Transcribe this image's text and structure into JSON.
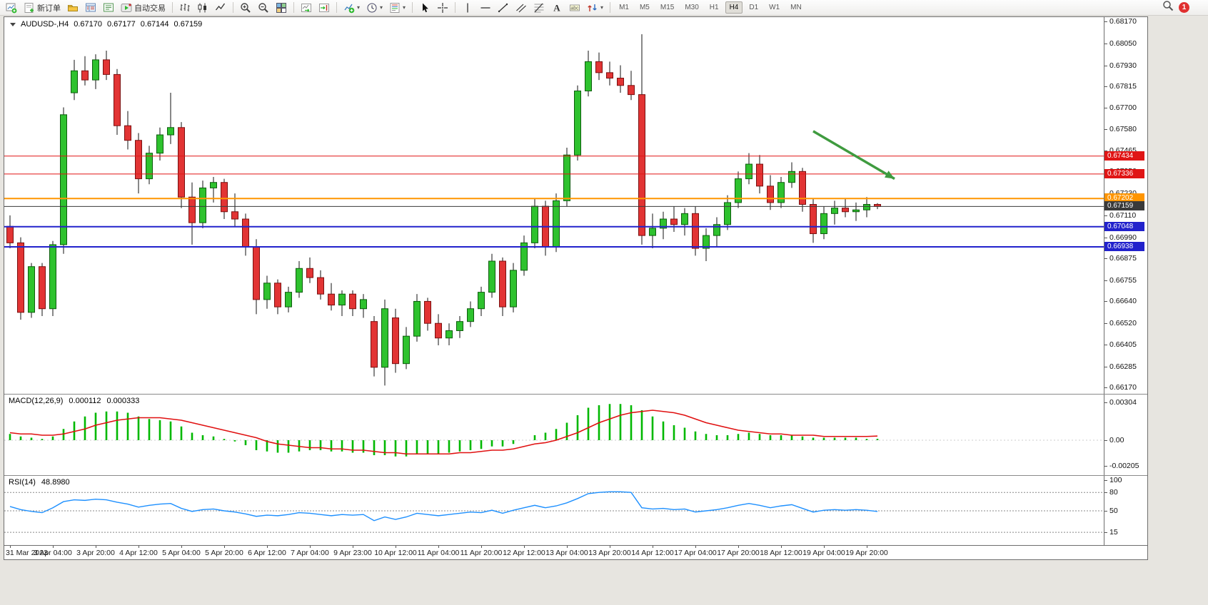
{
  "toolbar": {
    "items": [
      {
        "name": "new-chart",
        "icon": "new-chart"
      },
      {
        "name": "new-order",
        "icon": "new-order",
        "label": "新订单"
      },
      {
        "name": "profiles",
        "icon": "profiles"
      },
      {
        "name": "market-watch",
        "icon": "market-watch"
      },
      {
        "name": "navigator",
        "icon": "navigator"
      },
      {
        "name": "autotrading",
        "icon": "autotrading",
        "label": "自动交易"
      },
      {
        "type": "sep"
      },
      {
        "name": "bar-chart",
        "icon": "bars"
      },
      {
        "name": "candlestick-chart",
        "icon": "candles"
      },
      {
        "name": "line-chart",
        "icon": "line"
      },
      {
        "type": "sep"
      },
      {
        "name": "zoom-in",
        "icon": "zoom-in"
      },
      {
        "name": "zoom-out",
        "icon": "zoom-out"
      },
      {
        "name": "tile-windows",
        "icon": "tile"
      },
      {
        "type": "sep"
      },
      {
        "name": "auto-scroll",
        "icon": "autoscroll"
      },
      {
        "name": "chart-shift",
        "icon": "shift"
      },
      {
        "type": "sep"
      },
      {
        "name": "indicators",
        "icon": "indicators",
        "dropdown": true
      },
      {
        "name": "periods",
        "icon": "clock",
        "dropdown": true
      },
      {
        "name": "templates",
        "icon": "template",
        "dropdown": true
      },
      {
        "type": "sep"
      },
      {
        "name": "cursor",
        "icon": "cursor"
      },
      {
        "name": "crosshair",
        "icon": "crosshair"
      },
      {
        "type": "sep"
      },
      {
        "name": "vertical-line",
        "icon": "vline"
      },
      {
        "name": "horizontal-line",
        "icon": "hline"
      },
      {
        "name": "trendline",
        "icon": "trend"
      },
      {
        "name": "equidistant-channel",
        "icon": "channel"
      },
      {
        "name": "fibonacci",
        "icon": "fibo"
      },
      {
        "name": "text",
        "icon": "text"
      },
      {
        "name": "text-label",
        "icon": "label"
      },
      {
        "name": "arrows",
        "icon": "arrows",
        "dropdown": true
      },
      {
        "type": "sep"
      }
    ],
    "timeframes": {
      "options": [
        "M1",
        "M5",
        "M15",
        "M30",
        "H1",
        "H4",
        "D1",
        "W1",
        "MN"
      ],
      "active": "H4"
    },
    "notification_count": "1"
  },
  "chart": {
    "symbol_label": "AUDUSD-,H4",
    "ohlc": {
      "open": "0.67170",
      "high": "0.67177",
      "low": "0.67144",
      "close": "0.67159"
    }
  },
  "chart_data": {
    "type": "candlestick",
    "symbol": "AUDUSD-",
    "timeframe": "H4",
    "price_range": [
      0.6617,
      0.6817
    ],
    "y_axis_ticks": [
      "0.68170",
      "0.68050",
      "0.67930",
      "0.67815",
      "0.67700",
      "0.67580",
      "0.67465",
      "0.67350",
      "0.67230",
      "0.67110",
      "0.66990",
      "0.66875",
      "0.66755",
      "0.66640",
      "0.66520",
      "0.66405",
      "0.66285",
      "0.66170"
    ],
    "time_labels": [
      "31 Mar 2023",
      "3 Apr 04:00",
      "3 Apr 20:00",
      "4 Apr 12:00",
      "5 Apr 04:00",
      "5 Apr 20:00",
      "6 Apr 12:00",
      "7 Apr 04:00",
      "9 Apr 23:00",
      "10 Apr 12:00",
      "11 Apr 04:00",
      "11 Apr 20:00",
      "12 Apr 12:00",
      "13 Apr 04:00",
      "13 Apr 20:00",
      "14 Apr 12:00",
      "17 Apr 04:00",
      "17 Apr 20:00",
      "18 Apr 12:00",
      "19 Apr 04:00",
      "19 Apr 20:00"
    ],
    "candles": [
      [
        0.6705,
        0.6711,
        0.6693,
        0.6696
      ],
      [
        0.6696,
        0.6699,
        0.6654,
        0.6658
      ],
      [
        0.6658,
        0.6685,
        0.6655,
        0.6683
      ],
      [
        0.6683,
        0.6685,
        0.6656,
        0.666
      ],
      [
        0.666,
        0.6697,
        0.6656,
        0.6695
      ],
      [
        0.6695,
        0.677,
        0.669,
        0.6766
      ],
      [
        0.6778,
        0.6796,
        0.6774,
        0.679
      ],
      [
        0.679,
        0.6798,
        0.6782,
        0.6785
      ],
      [
        0.6785,
        0.6799,
        0.678,
        0.6796
      ],
      [
        0.6796,
        0.6801,
        0.6785,
        0.6788
      ],
      [
        0.6788,
        0.6791,
        0.6755,
        0.676
      ],
      [
        0.676,
        0.6768,
        0.6747,
        0.6752
      ],
      [
        0.6752,
        0.6756,
        0.6723,
        0.6731
      ],
      [
        0.6731,
        0.6749,
        0.6728,
        0.6745
      ],
      [
        0.6745,
        0.6759,
        0.6741,
        0.6755
      ],
      [
        0.6755,
        0.6778,
        0.675,
        0.6759
      ],
      [
        0.6759,
        0.6762,
        0.6715,
        0.6721
      ],
      [
        0.6721,
        0.6729,
        0.6695,
        0.6707
      ],
      [
        0.6707,
        0.673,
        0.6704,
        0.6726
      ],
      [
        0.6726,
        0.6732,
        0.6718,
        0.6729
      ],
      [
        0.6729,
        0.6731,
        0.6709,
        0.6713
      ],
      [
        0.6713,
        0.6723,
        0.6705,
        0.6709
      ],
      [
        0.6709,
        0.6712,
        0.6689,
        0.6694
      ],
      [
        0.6694,
        0.6698,
        0.6657,
        0.6665
      ],
      [
        0.6665,
        0.6678,
        0.666,
        0.6674
      ],
      [
        0.6674,
        0.6676,
        0.6657,
        0.6661
      ],
      [
        0.6661,
        0.6672,
        0.6658,
        0.6669
      ],
      [
        0.6669,
        0.6686,
        0.6666,
        0.6682
      ],
      [
        0.6682,
        0.6688,
        0.6674,
        0.6677
      ],
      [
        0.6677,
        0.6681,
        0.6665,
        0.6668
      ],
      [
        0.6668,
        0.6674,
        0.6659,
        0.6662
      ],
      [
        0.6662,
        0.667,
        0.6656,
        0.6668
      ],
      [
        0.6668,
        0.667,
        0.6656,
        0.666
      ],
      [
        0.666,
        0.6668,
        0.6655,
        0.6665
      ],
      [
        0.6653,
        0.6656,
        0.6623,
        0.6628
      ],
      [
        0.6628,
        0.6665,
        0.6618,
        0.666
      ],
      [
        0.6655,
        0.666,
        0.6625,
        0.663
      ],
      [
        0.663,
        0.665,
        0.6627,
        0.6645
      ],
      [
        0.6645,
        0.6668,
        0.6642,
        0.6664
      ],
      [
        0.6664,
        0.6666,
        0.6648,
        0.6652
      ],
      [
        0.6652,
        0.6657,
        0.664,
        0.6644
      ],
      [
        0.6644,
        0.6652,
        0.664,
        0.6648
      ],
      [
        0.6648,
        0.6656,
        0.6644,
        0.6653
      ],
      [
        0.6653,
        0.6664,
        0.665,
        0.666
      ],
      [
        0.666,
        0.6672,
        0.6656,
        0.6669
      ],
      [
        0.6669,
        0.669,
        0.6666,
        0.6686
      ],
      [
        0.6686,
        0.6688,
        0.6656,
        0.6661
      ],
      [
        0.6661,
        0.6685,
        0.6658,
        0.6681
      ],
      [
        0.6681,
        0.67,
        0.6678,
        0.6696
      ],
      [
        0.6696,
        0.672,
        0.6693,
        0.6716
      ],
      [
        0.6716,
        0.6719,
        0.6689,
        0.6694
      ],
      [
        0.6694,
        0.6723,
        0.6691,
        0.6719
      ],
      [
        0.6719,
        0.6748,
        0.6716,
        0.6744
      ],
      [
        0.6744,
        0.6782,
        0.6741,
        0.6779
      ],
      [
        0.6779,
        0.6801,
        0.6776,
        0.6795
      ],
      [
        0.6795,
        0.68,
        0.6785,
        0.6789
      ],
      [
        0.6789,
        0.6795,
        0.6782,
        0.6786
      ],
      [
        0.6786,
        0.6793,
        0.6778,
        0.6782
      ],
      [
        0.6782,
        0.679,
        0.6774,
        0.6777
      ],
      [
        0.6777,
        0.681,
        0.6695,
        0.67
      ],
      [
        0.67,
        0.6712,
        0.6693,
        0.6704
      ],
      [
        0.6704,
        0.6713,
        0.6698,
        0.6709
      ],
      [
        0.6709,
        0.6716,
        0.6702,
        0.6706
      ],
      [
        0.6706,
        0.6715,
        0.67,
        0.6712
      ],
      [
        0.6712,
        0.6716,
        0.6689,
        0.6693
      ],
      [
        0.6693,
        0.6704,
        0.6686,
        0.67
      ],
      [
        0.67,
        0.671,
        0.6694,
        0.6706
      ],
      [
        0.6706,
        0.6722,
        0.6703,
        0.6718
      ],
      [
        0.6718,
        0.6735,
        0.6715,
        0.6731
      ],
      [
        0.6731,
        0.6745,
        0.6728,
        0.6739
      ],
      [
        0.6739,
        0.6744,
        0.6723,
        0.6727
      ],
      [
        0.6727,
        0.6733,
        0.6714,
        0.6718
      ],
      [
        0.6718,
        0.6732,
        0.6715,
        0.6729
      ],
      [
        0.6729,
        0.674,
        0.6726,
        0.6735
      ],
      [
        0.6735,
        0.6737,
        0.6713,
        0.6717
      ],
      [
        0.6717,
        0.672,
        0.6696,
        0.6701
      ],
      [
        0.6701,
        0.6716,
        0.6698,
        0.6712
      ],
      [
        0.6712,
        0.6719,
        0.6706,
        0.6715
      ],
      [
        0.6715,
        0.672,
        0.671,
        0.6713
      ],
      [
        0.6713,
        0.6718,
        0.6708,
        0.6714
      ],
      [
        0.6714,
        0.6721,
        0.671,
        0.6717
      ],
      [
        0.6717,
        0.67177,
        0.67144,
        0.67159
      ]
    ],
    "hlines": [
      {
        "price": 0.67434,
        "color": "#e01515",
        "width": 1,
        "label": "0.67434"
      },
      {
        "price": 0.67336,
        "color": "#e01515",
        "width": 1,
        "label": "0.67336"
      },
      {
        "price": 0.67202,
        "color": "#ff9500",
        "width": 2,
        "label": "0.67202"
      },
      {
        "price": 0.67159,
        "color": "#3a3a3a",
        "width": 1,
        "label": "0.67159"
      },
      {
        "price": 0.67048,
        "color": "#2222cc",
        "width": 2,
        "label": "0.67048"
      },
      {
        "price": 0.66938,
        "color": "#2222cc",
        "width": 2,
        "label": "0.66938"
      }
    ],
    "arrow": {
      "bar1": 75,
      "price1": 0.6757,
      "bar2": 82.6,
      "price2": 0.6731,
      "color": "#3f9b3f",
      "width": 3.5
    },
    "macd": {
      "label": "MACD(12,26,9)",
      "value_text": "0.000112",
      "signal_text": "0.000333",
      "axis": [
        "0.00304",
        "0.00",
        "-0.00205"
      ],
      "values": [
        0.0005,
        0.0003,
        0.0002,
        0.0001,
        0.0003,
        0.0009,
        0.0015,
        0.0019,
        0.0022,
        0.0023,
        0.0023,
        0.0022,
        0.0019,
        0.0017,
        0.0016,
        0.0015,
        0.0011,
        0.0006,
        0.0004,
        0.0003,
        0.0001,
        -0.0001,
        -0.0004,
        -0.0008,
        -0.0009,
        -0.001,
        -0.001,
        -0.0009,
        -0.0008,
        -0.0008,
        -0.0009,
        -0.0009,
        -0.001,
        -0.001,
        -0.0012,
        -0.0012,
        -0.0013,
        -0.0013,
        -0.0011,
        -0.0011,
        -0.0011,
        -0.001,
        -0.0009,
        -0.0008,
        -0.0007,
        -0.0005,
        -0.0005,
        -0.0003,
        0.0,
        0.0004,
        0.0006,
        0.0009,
        0.0014,
        0.002,
        0.0026,
        0.0028,
        0.0029,
        0.0029,
        0.0028,
        0.0024,
        0.0019,
        0.0015,
        0.0012,
        0.001,
        0.0007,
        0.0005,
        0.0004,
        0.0004,
        0.0005,
        0.0006,
        0.0005,
        0.0004,
        0.0004,
        0.0004,
        0.0003,
        0.0002,
        0.0002,
        0.0002,
        0.0002,
        0.0002,
        0.0001,
        0.000112
      ],
      "signal": [
        0.0006,
        0.0005,
        0.0005,
        0.0004,
        0.0004,
        0.0005,
        0.0007,
        0.0009,
        0.0012,
        0.0014,
        0.0016,
        0.0017,
        0.0018,
        0.0018,
        0.0018,
        0.0017,
        0.0016,
        0.0014,
        0.0012,
        0.001,
        0.0008,
        0.0006,
        0.0004,
        0.0002,
        -0.0001,
        -0.0003,
        -0.0004,
        -0.0005,
        -0.0006,
        -0.0006,
        -0.0007,
        -0.0007,
        -0.0008,
        -0.0008,
        -0.0009,
        -0.001,
        -0.001,
        -0.0011,
        -0.0011,
        -0.0011,
        -0.0011,
        -0.0011,
        -0.001,
        -0.001,
        -0.0009,
        -0.0008,
        -0.0008,
        -0.0007,
        -0.0005,
        -0.0003,
        -0.0002,
        0.0,
        0.0003,
        0.0006,
        0.001,
        0.0014,
        0.0017,
        0.002,
        0.0022,
        0.0023,
        0.0024,
        0.0023,
        0.0022,
        0.002,
        0.0017,
        0.0014,
        0.0012,
        0.001,
        0.0008,
        0.0007,
        0.0006,
        0.0005,
        0.0005,
        0.0004,
        0.0004,
        0.0004,
        0.0003,
        0.0003,
        0.0003,
        0.0003,
        0.0003,
        0.000333
      ]
    },
    "rsi": {
      "label": "RSI(14)",
      "value_text": "48.8980",
      "axis": [
        "100",
        "80",
        "50",
        "15"
      ],
      "levels": [
        80,
        50,
        15
      ],
      "values": [
        57,
        52,
        49,
        47,
        55,
        65,
        68,
        67,
        69,
        68,
        64,
        61,
        56,
        59,
        61,
        62,
        54,
        49,
        52,
        53,
        50,
        48,
        45,
        41,
        43,
        42,
        44,
        47,
        46,
        44,
        42,
        44,
        43,
        44,
        34,
        40,
        36,
        40,
        46,
        44,
        42,
        44,
        46,
        48,
        47,
        51,
        46,
        51,
        55,
        59,
        55,
        58,
        63,
        70,
        78,
        80,
        81,
        81,
        80,
        55,
        53,
        54,
        52,
        53,
        48,
        50,
        52,
        55,
        59,
        62,
        59,
        55,
        58,
        60,
        54,
        48,
        51,
        52,
        51,
        52,
        51,
        48.898
      ]
    }
  }
}
